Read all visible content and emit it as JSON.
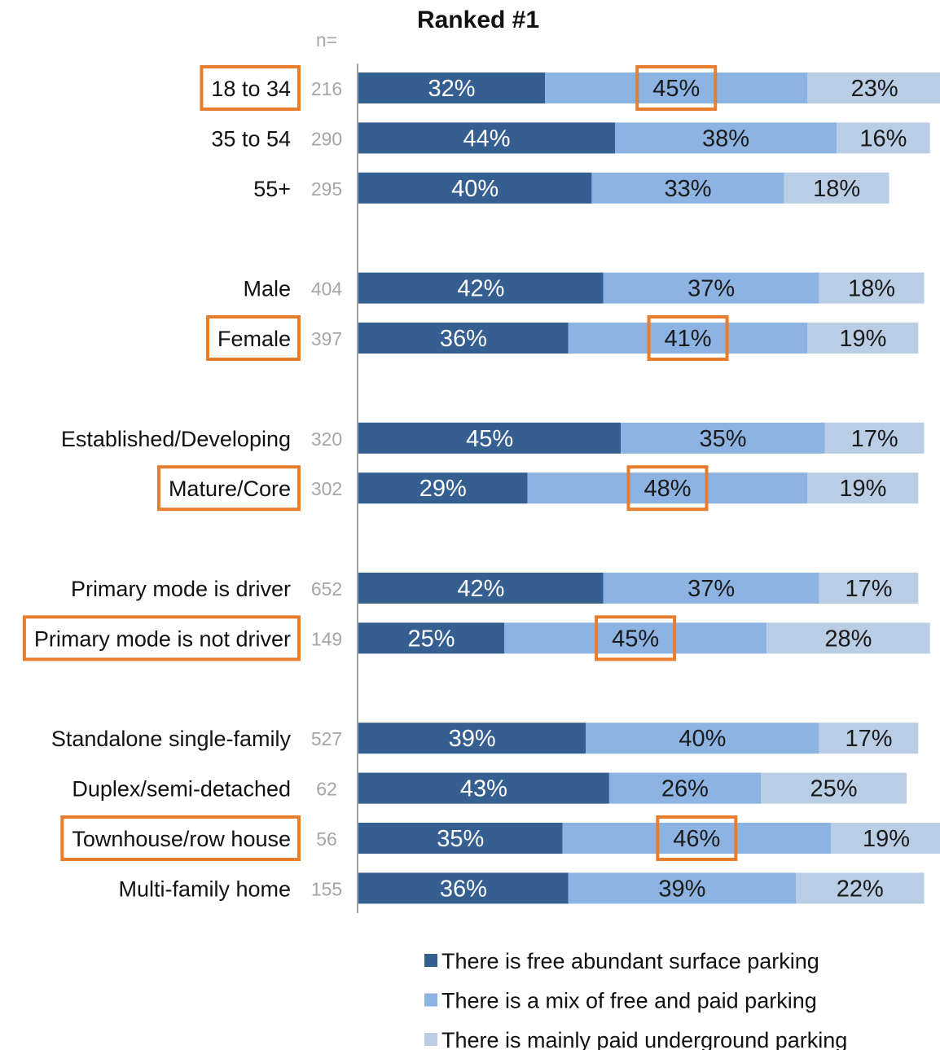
{
  "chart_data": {
    "type": "bar",
    "orientation": "horizontal",
    "stacked": true,
    "title": "Ranked #1",
    "n_header": "n=",
    "xlim": [
      0,
      100
    ],
    "categories": [
      "18 to 34",
      "35 to 54",
      "55+",
      "Male",
      "Female",
      "Established/Developing",
      "Mature/Core",
      "Primary mode is driver",
      "Primary mode is not driver",
      "Standalone single-family",
      "Duplex/semi-detached",
      "Townhouse/row house",
      "Multi-family home"
    ],
    "groups": [
      [
        0,
        1,
        2
      ],
      [
        3,
        4
      ],
      [
        5,
        6
      ],
      [
        7,
        8
      ],
      [
        9,
        10,
        11,
        12
      ]
    ],
    "n": [
      "216",
      "290",
      "295",
      "404",
      "397",
      "320",
      "302",
      "652",
      "149",
      "527",
      "62",
      "56",
      "155"
    ],
    "highlighted_categories": [
      0,
      4,
      6,
      8,
      11
    ],
    "series": [
      {
        "name": "There is free abundant surface parking",
        "color": "#365f91",
        "values": [
          32,
          44,
          40,
          42,
          36,
          45,
          29,
          42,
          25,
          39,
          43,
          35,
          36
        ],
        "labels": [
          "32%",
          "44%",
          "40%",
          "42%",
          "36%",
          "45%",
          "29%",
          "42%",
          "25%",
          "39%",
          "43%",
          "35%",
          "36%"
        ]
      },
      {
        "name": "There is a mix of free and paid parking",
        "color": "#8db3e2",
        "values": [
          45,
          38,
          33,
          37,
          41,
          35,
          48,
          37,
          45,
          40,
          26,
          46,
          39
        ],
        "labels": [
          "45%",
          "38%",
          "33%",
          "37%",
          "41%",
          "35%",
          "48%",
          "37%",
          "45%",
          "40%",
          "26%",
          "46%",
          "39%"
        ]
      },
      {
        "name": "There is mainly paid underground parking",
        "color": "#b9cde5",
        "values": [
          23,
          16,
          18,
          18,
          19,
          17,
          19,
          17,
          28,
          17,
          25,
          19,
          22
        ],
        "labels": [
          "23%",
          "16%",
          "18%",
          "18%",
          "19%",
          "17%",
          "19%",
          "17%",
          "28%",
          "17%",
          "25%",
          "19%",
          "22%"
        ]
      }
    ],
    "highlight_color": "#e87e2d",
    "grid": false,
    "legend": "bottom"
  }
}
